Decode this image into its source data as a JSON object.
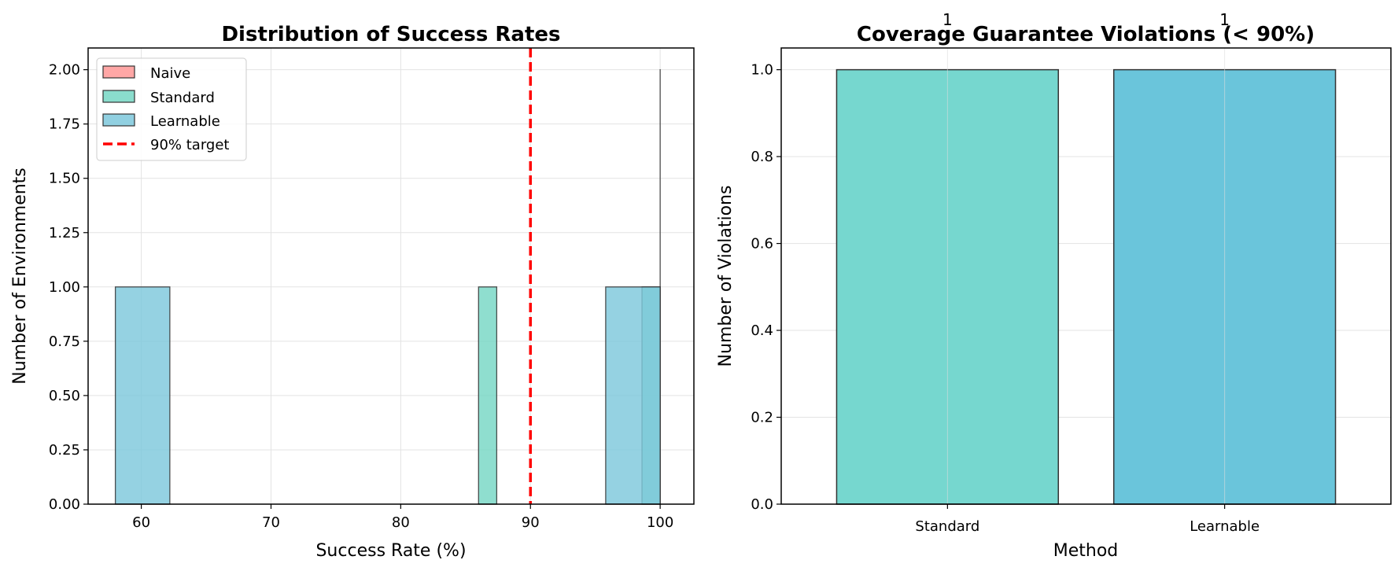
{
  "chart_data": [
    {
      "type": "bar",
      "subtype": "histogram",
      "title": "Distribution of Success Rates",
      "xlabel": "Success Rate (%)",
      "ylabel": "Number of Environments",
      "xlim": [
        55.9,
        102.6
      ],
      "ylim": [
        0,
        2.1
      ],
      "xticks": [
        "60",
        "70",
        "80",
        "90",
        "100"
      ],
      "yticks": [
        "0.00",
        "0.25",
        "0.50",
        "0.75",
        "1.00",
        "1.25",
        "1.50",
        "1.75",
        "2.00"
      ],
      "grid": true,
      "legend_position": "top-left",
      "series": [
        {
          "name": "Naive",
          "color": "#ff9896",
          "bins": [
            [
              100,
              100,
              2
            ]
          ]
        },
        {
          "name": "Standard",
          "color": "#76d7c4",
          "bins": [
            [
              86.0,
              87.4,
              1
            ],
            [
              98.6,
              100,
              1
            ]
          ]
        },
        {
          "name": "Learnable",
          "color": "#7ec8dc",
          "bins": [
            [
              58.0,
              62.2,
              1
            ],
            [
              95.8,
              100,
              1
            ]
          ]
        }
      ],
      "reference_line": {
        "name": "90% target",
        "x": 90,
        "color": "#ff0000",
        "style": "dashed"
      }
    },
    {
      "type": "bar",
      "title": "Coverage Guarantee Violations (< 90%)",
      "xlabel": "Method",
      "ylabel": "Number of Violations",
      "categories": [
        "Standard",
        "Learnable"
      ],
      "values": [
        1,
        1
      ],
      "data_labels": [
        "1",
        "1"
      ],
      "colors": [
        "#76d7cf",
        "#6ac5db"
      ],
      "ylim": [
        0,
        1.05
      ],
      "yticks": [
        "0.0",
        "0.2",
        "0.4",
        "0.6",
        "0.8",
        "1.0"
      ],
      "grid": true
    }
  ]
}
